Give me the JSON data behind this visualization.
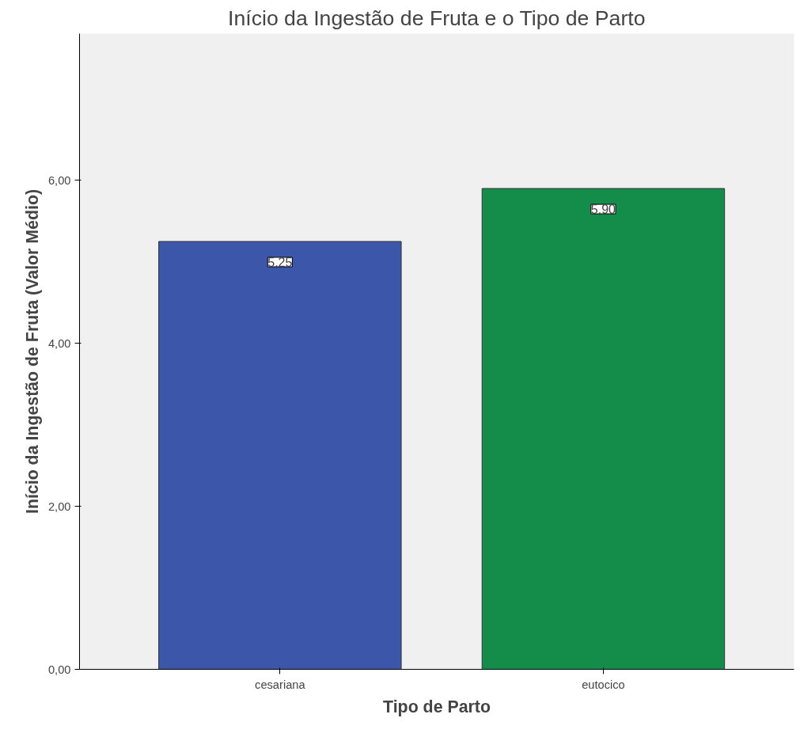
{
  "chart_data": {
    "type": "bar",
    "title": "Início da Ingestão de Fruta e o Tipo de Parto",
    "xlabel": "Tipo de Parto",
    "ylabel": "Início da Ingestão de Fruta (Valor Médio)",
    "categories": [
      "cesariana",
      "eutocico"
    ],
    "values": [
      5.25,
      5.9
    ],
    "colors": [
      "#3c57a9",
      "#148c4a"
    ],
    "value_labels": [
      "5,25",
      "5,90"
    ],
    "ylim": [
      0,
      7.8
    ],
    "yticks": [
      {
        "value": 0,
        "label": "0,00"
      },
      {
        "value": 2,
        "label": "2,00"
      },
      {
        "value": 4,
        "label": "4,00"
      },
      {
        "value": 6,
        "label": "6,00"
      }
    ],
    "grid": false
  }
}
